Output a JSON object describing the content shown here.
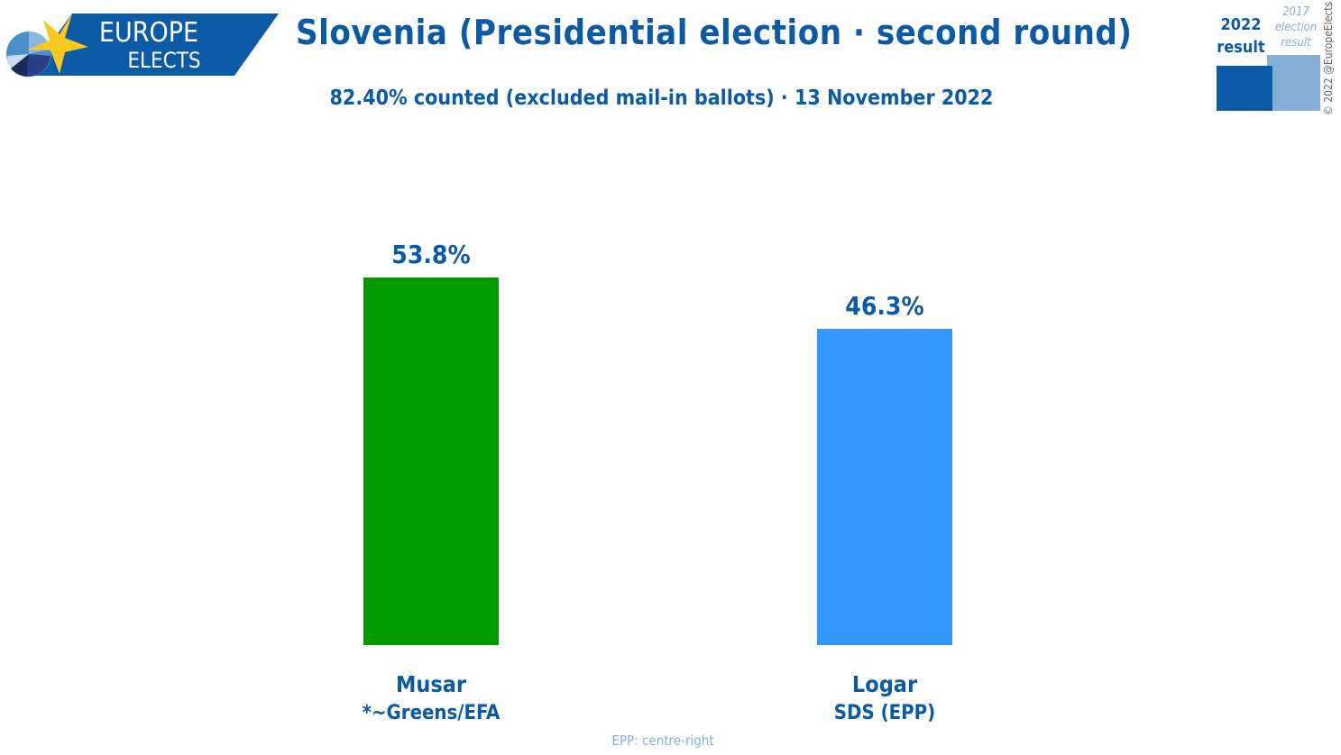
{
  "logo": {
    "line1": "EUROPE",
    "line2": "ELECTS"
  },
  "header": {
    "title": "Slovenia (Presidential election · second round)",
    "subtitle": "82.40% counted (excluded mail-in ballots) · 13 November 2022"
  },
  "legend": {
    "current": "2022 result",
    "current_line1": "2022",
    "current_line2": "result",
    "previous_line1": "2017",
    "previous_line2": "election",
    "previous_line3": "result",
    "current_color": "#0a5aa5",
    "previous_color": "#84b0d8"
  },
  "copyright": "© 2022 @EuropeElects",
  "footnote": "EPP: centre-right",
  "chart_data": {
    "type": "bar",
    "title": "Slovenia (Presidential election · second round)",
    "categories": [
      "Musar",
      "Logar"
    ],
    "parties": [
      "*~Greens/EFA",
      "SDS (EPP)"
    ],
    "values": [
      53.8,
      46.3
    ],
    "labels": [
      "53.8%",
      "46.3%"
    ],
    "colors": [
      "#009900",
      "#3399ff"
    ],
    "ylim": [
      0,
      100
    ],
    "grid": false,
    "xlabel": "",
    "ylabel": ""
  }
}
